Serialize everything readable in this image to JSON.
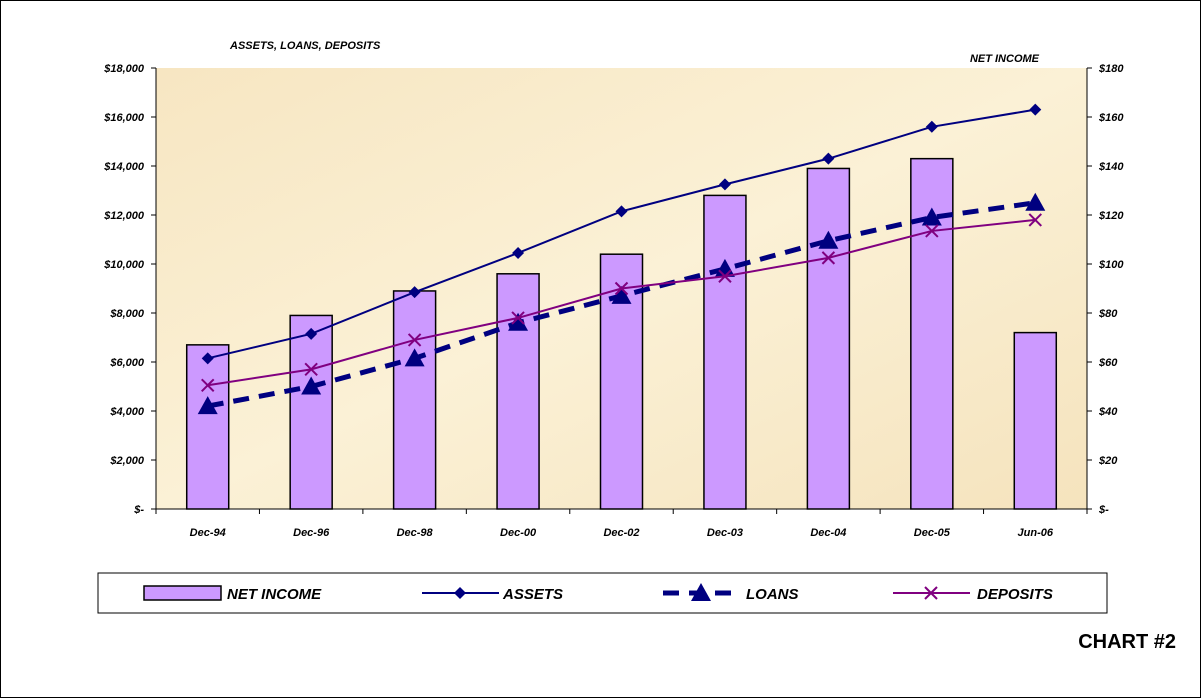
{
  "chart_data": {
    "type": "bar+line",
    "categories": [
      "Dec-94",
      "Dec-96",
      "Dec-98",
      "Dec-00",
      "Dec-02",
      "Dec-03",
      "Dec-04",
      "Dec-05",
      "Jun-06"
    ],
    "left_axis": {
      "title": "ASSETS, LOANS, DEPOSITS",
      "range": [
        0,
        18000
      ],
      "ticks": [
        "$-",
        "$2,000",
        "$4,000",
        "$6,000",
        "$8,000",
        "$10,000",
        "$12,000",
        "$14,000",
        "$16,000",
        "$18,000"
      ]
    },
    "right_axis": {
      "title": "NET INCOME",
      "range": [
        0,
        180
      ],
      "ticks": [
        "$-",
        "$20",
        "$40",
        "$60",
        "$80",
        "$100",
        "$120",
        "$140",
        "$160",
        "$180"
      ]
    },
    "series": [
      {
        "name": "NET INCOME",
        "kind": "bar",
        "axis": "right",
        "color": "#cc99ff",
        "values": [
          67,
          79,
          89,
          96,
          104,
          128,
          139,
          143,
          72
        ]
      },
      {
        "name": "ASSETS",
        "kind": "line",
        "marker": "diamond",
        "axis": "left",
        "color": "#000080",
        "values": [
          6150,
          7150,
          8850,
          10450,
          12150,
          13250,
          14300,
          15600,
          16300
        ]
      },
      {
        "name": "LOANS",
        "kind": "line",
        "marker": "triangle",
        "dashed": true,
        "axis": "left",
        "color": "#000080",
        "values": [
          4200,
          5000,
          6150,
          7600,
          8700,
          9800,
          10950,
          11900,
          12500
        ]
      },
      {
        "name": "DEPOSITS",
        "kind": "line",
        "marker": "x",
        "axis": "left",
        "color": "#800080",
        "values": [
          5050,
          5700,
          6900,
          7800,
          9000,
          9500,
          10250,
          11350,
          11800
        ]
      }
    ],
    "grid": false,
    "legend": "bottom",
    "plot_background": "#f8ecc8"
  },
  "chart_label": "CHART #2"
}
